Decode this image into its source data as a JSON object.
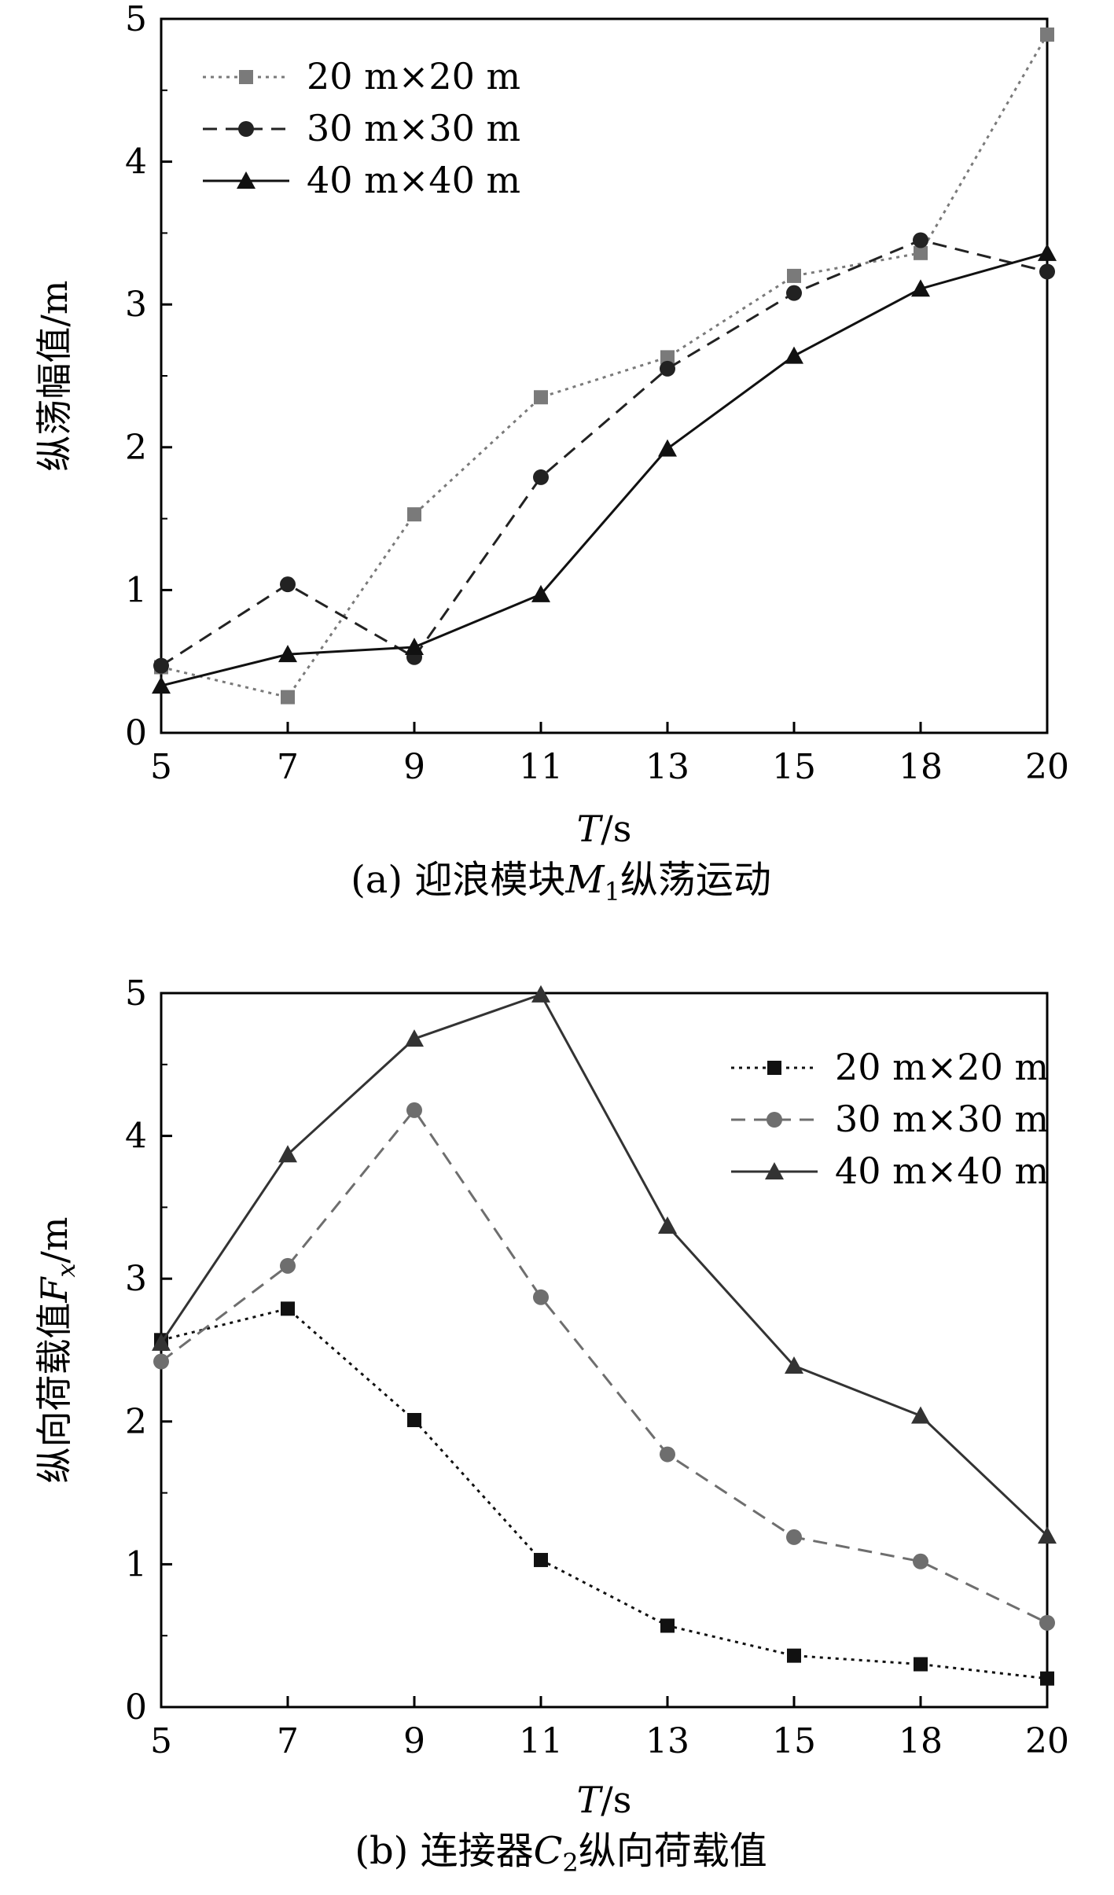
{
  "chart_data": [
    {
      "id": "a",
      "type": "line",
      "caption": "(a) 迎浪模块M1纵荡运动",
      "caption_parts": {
        "prefix": "(a) 迎浪模块",
        "symbol": "M",
        "sub": "1",
        "suffix": "纵荡运动"
      },
      "xlabel": "T/s",
      "xlabel_parts": {
        "symbol": "T",
        "unit": "/s"
      },
      "ylabel": "纵荡幅值/m",
      "ylabel_parts": {
        "prefix": "纵荡幅值",
        "symbol": "",
        "sub": "",
        "unit": "/m"
      },
      "x": [
        5,
        7,
        9,
        11,
        13,
        15,
        18,
        20
      ],
      "xticks": [
        "5",
        "7",
        "9",
        "11",
        "13",
        "15",
        "18",
        "20"
      ],
      "ylim": [
        0,
        5
      ],
      "yticks": [
        "0",
        "1",
        "2",
        "3",
        "4",
        "5"
      ],
      "legend_position": "top-left",
      "series": [
        {
          "name": "20 m×20 m",
          "marker": "square",
          "line": "dotted",
          "color": "#7a7a7a",
          "values": [
            0.46,
            0.25,
            1.53,
            2.35,
            2.63,
            3.2,
            3.36,
            4.89
          ]
        },
        {
          "name": "30 m×30 m",
          "marker": "circle",
          "line": "dashed",
          "color": "#222222",
          "values": [
            0.47,
            1.04,
            0.53,
            1.79,
            2.55,
            3.08,
            3.45,
            3.23
          ]
        },
        {
          "name": "40 m×40 m",
          "marker": "triangle",
          "line": "solid",
          "color": "#111111",
          "values": [
            0.33,
            0.55,
            0.6,
            0.97,
            1.99,
            2.64,
            3.11,
            3.36
          ]
        }
      ]
    },
    {
      "id": "b",
      "type": "line",
      "caption": "(b) 连接器C2纵向荷载值",
      "caption_parts": {
        "prefix": "(b) 连接器",
        "symbol": "C",
        "sub": "2",
        "suffix": "纵向荷载值"
      },
      "xlabel": "T/s",
      "xlabel_parts": {
        "symbol": "T",
        "unit": "/s"
      },
      "ylabel": "纵向荷载值Fx/m",
      "ylabel_parts": {
        "prefix": "纵向荷载值",
        "symbol": "F",
        "sub": "x",
        "unit": "/m"
      },
      "x": [
        5,
        7,
        9,
        11,
        13,
        15,
        18,
        20
      ],
      "xticks": [
        "5",
        "7",
        "9",
        "11",
        "13",
        "15",
        "18",
        "20"
      ],
      "ylim": [
        0,
        5
      ],
      "yticks": [
        "0",
        "1",
        "2",
        "3",
        "4",
        "5"
      ],
      "legend_position": "top-right",
      "series": [
        {
          "name": "20 m×20 m",
          "marker": "square",
          "line": "dotted",
          "color": "#111111",
          "values": [
            2.57,
            2.79,
            2.01,
            1.03,
            0.57,
            0.36,
            0.3,
            0.2
          ]
        },
        {
          "name": "30 m×30 m",
          "marker": "circle",
          "line": "dashed",
          "color": "#6e6e6e",
          "values": [
            2.42,
            3.09,
            4.18,
            2.87,
            1.77,
            1.19,
            1.02,
            0.59
          ]
        },
        {
          "name": "40 m×40 m",
          "marker": "triangle",
          "line": "solid",
          "color": "#333333",
          "values": [
            2.55,
            3.87,
            4.68,
            4.99,
            3.37,
            2.39,
            2.04,
            1.2
          ]
        }
      ]
    }
  ]
}
